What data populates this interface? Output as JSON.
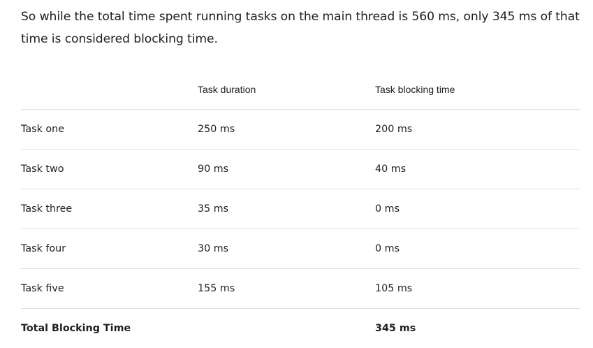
{
  "paragraph": "So while the total time spent running tasks on the main thread is 560 ms, only 345 ms of that time is considered blocking time.",
  "table": {
    "headers": [
      "",
      "Task duration",
      "Task blocking time"
    ],
    "rows": [
      {
        "task": "Task one",
        "duration": "250 ms",
        "blocking": "200 ms"
      },
      {
        "task": "Task two",
        "duration": "90 ms",
        "blocking": "40 ms"
      },
      {
        "task": "Task three",
        "duration": "35 ms",
        "blocking": "0 ms"
      },
      {
        "task": "Task four",
        "duration": "30 ms",
        "blocking": "0 ms"
      },
      {
        "task": "Task five",
        "duration": "155 ms",
        "blocking": "105 ms"
      }
    ],
    "total": {
      "label": "Total Blocking Time",
      "duration": "",
      "blocking": "345 ms"
    }
  }
}
